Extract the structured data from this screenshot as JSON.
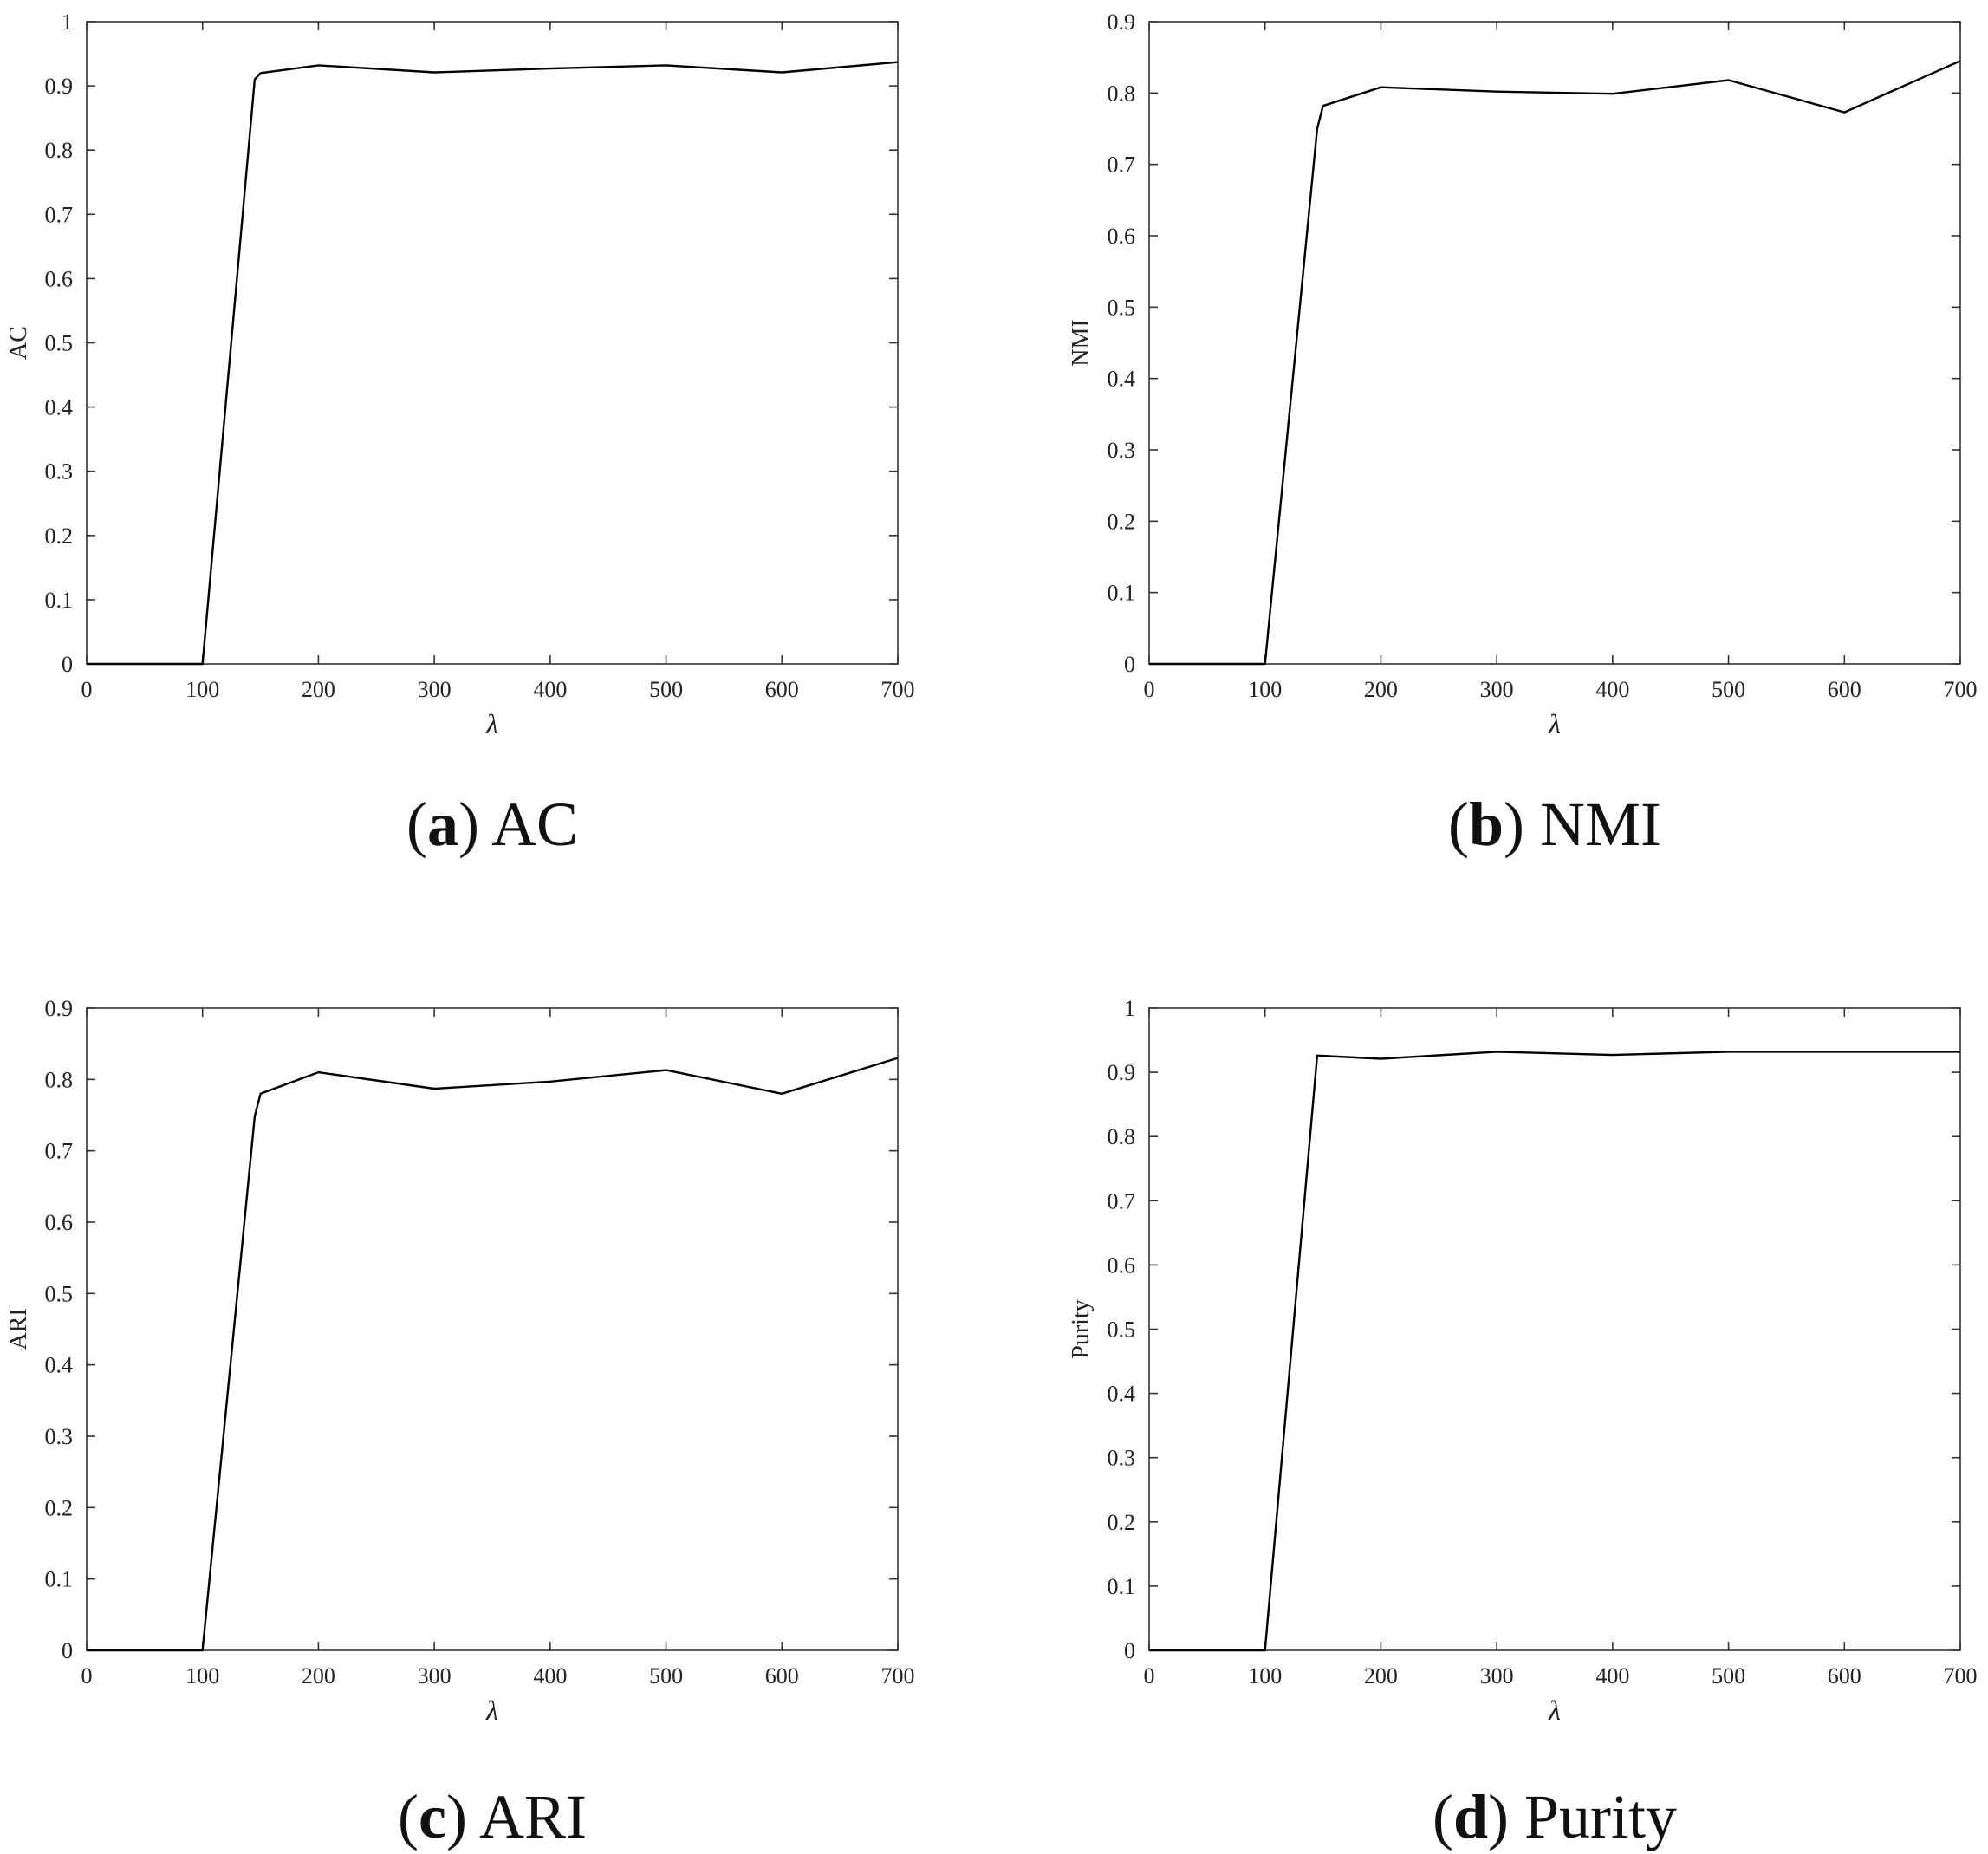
{
  "chart_data": [
    {
      "type": "line",
      "caption_letter": "a",
      "caption_text": "AC",
      "xlabel": "λ",
      "ylabel": "AC",
      "xlim": [
        0,
        700
      ],
      "ylim": [
        0,
        1
      ],
      "xticks": [
        0,
        100,
        200,
        300,
        400,
        500,
        600,
        700
      ],
      "yticks": [
        0,
        0.1,
        0.2,
        0.3,
        0.4,
        0.5,
        0.6,
        0.7,
        0.8,
        0.9,
        1
      ],
      "ytick_labels": [
        "0",
        "0.1",
        "0.2",
        "0.3",
        "0.4",
        "0.5",
        "0.6",
        "0.7",
        "0.8",
        "0.9",
        "1"
      ],
      "grid": false,
      "x": [
        0,
        100,
        145,
        150,
        200,
        300,
        400,
        500,
        600,
        700
      ],
      "y": [
        0,
        0,
        0.91,
        0.92,
        0.932,
        0.921,
        0.927,
        0.932,
        0.921,
        0.937
      ]
    },
    {
      "type": "line",
      "caption_letter": "b",
      "caption_text": "NMI",
      "xlabel": "λ",
      "ylabel": "NMI",
      "xlim": [
        0,
        700
      ],
      "ylim": [
        0,
        0.9
      ],
      "xticks": [
        0,
        100,
        200,
        300,
        400,
        500,
        600,
        700
      ],
      "yticks": [
        0,
        0.1,
        0.2,
        0.3,
        0.4,
        0.5,
        0.6,
        0.7,
        0.8,
        0.9
      ],
      "ytick_labels": [
        "0",
        "0.1",
        "0.2",
        "0.3",
        "0.4",
        "0.5",
        "0.6",
        "0.7",
        "0.8",
        "0.9"
      ],
      "grid": false,
      "x": [
        0,
        100,
        145,
        150,
        200,
        300,
        400,
        500,
        600,
        700
      ],
      "y": [
        0,
        0,
        0.75,
        0.782,
        0.808,
        0.802,
        0.799,
        0.818,
        0.773,
        0.845
      ]
    },
    {
      "type": "line",
      "caption_letter": "c",
      "caption_text": "ARI",
      "xlabel": "λ",
      "ylabel": "ARI",
      "xlim": [
        0,
        700
      ],
      "ylim": [
        0,
        0.9
      ],
      "xticks": [
        0,
        100,
        200,
        300,
        400,
        500,
        600,
        700
      ],
      "yticks": [
        0,
        0.1,
        0.2,
        0.3,
        0.4,
        0.5,
        0.6,
        0.7,
        0.8,
        0.9
      ],
      "ytick_labels": [
        "0",
        "0.1",
        "0.2",
        "0.3",
        "0.4",
        "0.5",
        "0.6",
        "0.7",
        "0.8",
        "0.9"
      ],
      "grid": false,
      "x": [
        0,
        100,
        145,
        150,
        200,
        300,
        400,
        500,
        600,
        700
      ],
      "y": [
        0,
        0,
        0.748,
        0.78,
        0.81,
        0.787,
        0.797,
        0.813,
        0.78,
        0.83
      ]
    },
    {
      "type": "line",
      "caption_letter": "d",
      "caption_text": "Purity",
      "xlabel": "λ",
      "ylabel": "Purity",
      "xlim": [
        0,
        700
      ],
      "ylim": [
        0,
        1
      ],
      "xticks": [
        0,
        100,
        200,
        300,
        400,
        500,
        600,
        700
      ],
      "yticks": [
        0,
        0.1,
        0.2,
        0.3,
        0.4,
        0.5,
        0.6,
        0.7,
        0.8,
        0.9,
        1
      ],
      "ytick_labels": [
        "0",
        "0.1",
        "0.2",
        "0.3",
        "0.4",
        "0.5",
        "0.6",
        "0.7",
        "0.8",
        "0.9",
        "1"
      ],
      "grid": false,
      "x": [
        0,
        100,
        145,
        200,
        300,
        400,
        500,
        600,
        700
      ],
      "y": [
        0,
        0,
        0.926,
        0.921,
        0.932,
        0.927,
        0.932,
        0.932,
        0.932
      ]
    }
  ]
}
